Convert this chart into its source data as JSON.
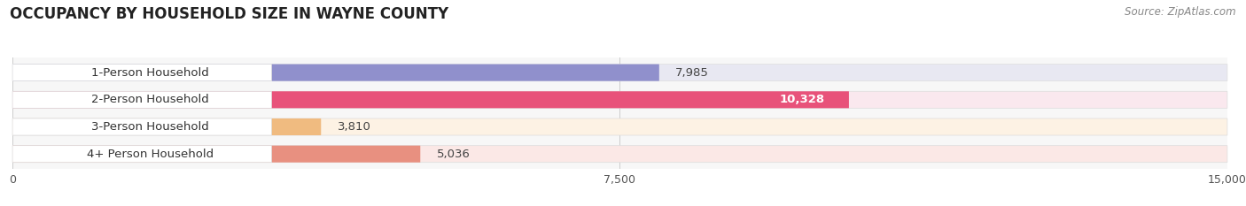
{
  "title": "OCCUPANCY BY HOUSEHOLD SIZE IN WAYNE COUNTY",
  "source": "Source: ZipAtlas.com",
  "categories": [
    "1-Person Household",
    "2-Person Household",
    "3-Person Household",
    "4+ Person Household"
  ],
  "values": [
    7985,
    10328,
    3810,
    5036
  ],
  "bar_colors": [
    "#9090cc",
    "#e8527a",
    "#f0bb80",
    "#e89080"
  ],
  "bar_bg_colors": [
    "#e8e8f2",
    "#fae8ee",
    "#fdf2e4",
    "#fbe8e6"
  ],
  "value_labels": [
    "7,985",
    "10,328",
    "3,810",
    "5,036"
  ],
  "value_label_colors": [
    "#555555",
    "#ffffff",
    "#555555",
    "#555555"
  ],
  "xlim": [
    0,
    15000
  ],
  "xticks": [
    0,
    7500,
    15000
  ],
  "xtick_labels": [
    "0",
    "7,500",
    "15,000"
  ],
  "title_fontsize": 12,
  "source_fontsize": 8.5,
  "label_fontsize": 9.5,
  "value_fontsize": 9.5,
  "bg_color": "#ffffff",
  "plot_bg_color": "#f7f7f7"
}
